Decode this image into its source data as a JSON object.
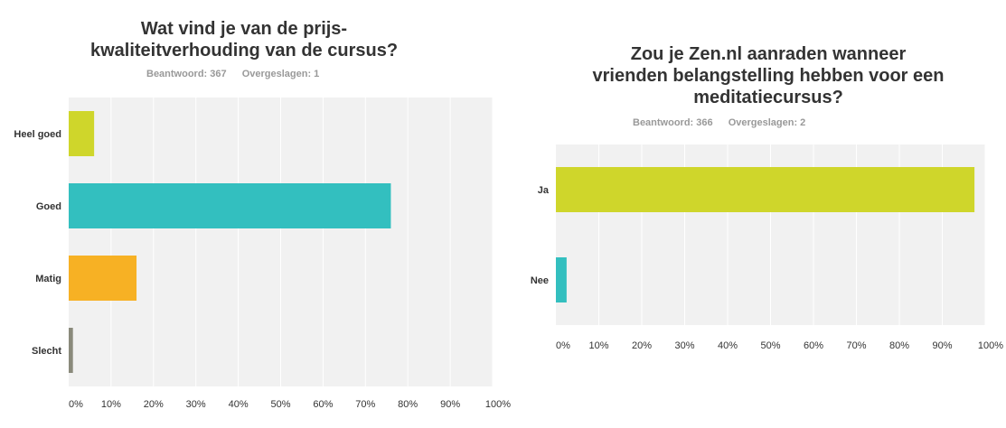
{
  "chart_data": [
    {
      "type": "bar",
      "orientation": "horizontal",
      "title_lines": [
        "Wat vind je van de prijs-",
        "kwaliteitverhouding van de cursus?"
      ],
      "answered": "Beantwoord: 367",
      "skipped": "Overgeslagen: 1",
      "categories": [
        "Heel goed",
        "Goed",
        "Matig",
        "Slecht"
      ],
      "values": [
        6,
        76,
        16,
        1
      ],
      "colors": [
        "#cfd62b",
        "#33bfbf",
        "#f7b124",
        "#8a8a7b"
      ],
      "xlim": [
        0,
        100
      ],
      "ticks": [
        "0%",
        "10%",
        "20%",
        "30%",
        "40%",
        "50%",
        "60%",
        "70%",
        "80%",
        "90%",
        "100%"
      ],
      "grid": true
    },
    {
      "type": "bar",
      "orientation": "horizontal",
      "title_lines": [
        "Zou je Zen.nl aanraden wanneer",
        "vrienden belangstelling hebben voor een",
        "meditatiecursus?"
      ],
      "answered": "Beantwoord: 366",
      "skipped": "Overgeslagen: 2",
      "categories": [
        "Ja",
        "Nee"
      ],
      "values": [
        97.5,
        2.5
      ],
      "colors": [
        "#cfd62b",
        "#33bfbf"
      ],
      "xlim": [
        0,
        100
      ],
      "ticks": [
        "0%",
        "10%",
        "20%",
        "30%",
        "40%",
        "50%",
        "60%",
        "70%",
        "80%",
        "90%",
        "100%"
      ],
      "grid": true
    }
  ]
}
